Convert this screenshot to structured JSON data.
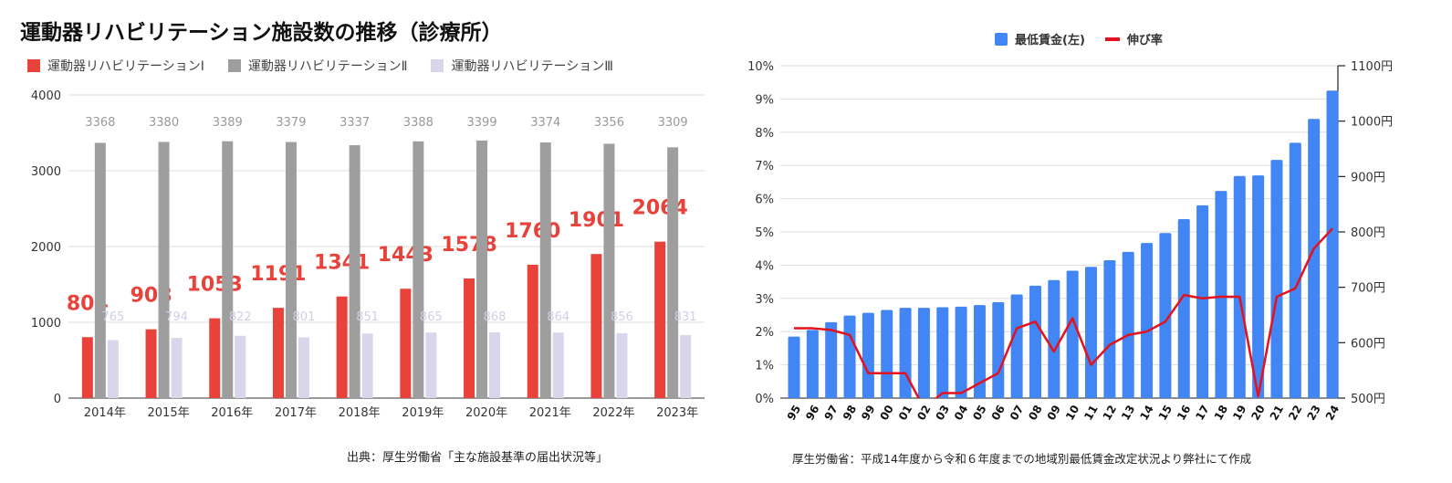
{
  "chart_data": [
    {
      "type": "bar",
      "title": "運動器リハビリテーション施設数の推移（診療所）",
      "categories": [
        "2014年",
        "2015年",
        "2016年",
        "2017年",
        "2018年",
        "2019年",
        "2020年",
        "2021年",
        "2022年",
        "2023年"
      ],
      "series": [
        {
          "name": "運動器リハビリテーションⅠ",
          "color": "#e8423a",
          "values": [
            804,
            908,
            1053,
            1191,
            1341,
            1443,
            1578,
            1760,
            1901,
            2064
          ]
        },
        {
          "name": "運動器リハビリテーションⅡ",
          "color": "#9e9e9e",
          "values": [
            3368,
            3380,
            3389,
            3379,
            3337,
            3388,
            3399,
            3374,
            3356,
            3309
          ]
        },
        {
          "name": "運動器リハビリテーションⅢ",
          "color": "#d9d5ea",
          "values": [
            765,
            794,
            822,
            801,
            851,
            865,
            868,
            864,
            856,
            831
          ]
        }
      ],
      "ylim": [
        0,
        4000
      ],
      "yticks": [
        "0",
        "1000",
        "2000",
        "3000",
        "4000"
      ],
      "grid": true,
      "legend": "top-left",
      "source": "出典：厚生労働省「主な施設基準の届出状況等」"
    },
    {
      "type": "bar+line",
      "categories": [
        "95",
        "96",
        "97",
        "98",
        "99",
        "00",
        "01",
        "02",
        "03",
        "04",
        "05",
        "06",
        "07",
        "08",
        "09",
        "10",
        "11",
        "12",
        "13",
        "14",
        "15",
        "16",
        "17",
        "18",
        "19",
        "20",
        "21",
        "22",
        "23",
        "24"
      ],
      "series": [
        {
          "name": "最低賃金(左)",
          "color": "#4285f4",
          "axis": "right",
          "values": [
            611,
            623,
            637,
            649,
            654,
            659,
            663,
            663,
            664,
            665,
            668,
            673,
            687,
            703,
            713,
            730,
            737,
            749,
            764,
            780,
            798,
            823,
            848,
            874,
            901,
            902,
            930,
            961,
            1004,
            1055
          ]
        },
        {
          "name": "伸び率",
          "color": "#e3121c",
          "axis": "left",
          "values": [
            2.1,
            2.1,
            2.05,
            1.9,
            0.75,
            0.75,
            0.75,
            -0.3,
            0.15,
            0.15,
            0.45,
            0.75,
            2.1,
            2.3,
            1.4,
            2.4,
            1.0,
            1.6,
            1.9,
            2.0,
            2.3,
            3.1,
            3.0,
            3.05,
            3.05,
            0.05,
            3.05,
            3.3,
            4.5,
            5.1
          ]
        }
      ],
      "ylim_left": [
        0,
        10
      ],
      "yticks_left": [
        "0%",
        "1%",
        "2%",
        "3%",
        "4%",
        "5%",
        "6%",
        "7%",
        "8%",
        "9%",
        "10%"
      ],
      "ylim_right": [
        500,
        1100
      ],
      "yticks_right": [
        "500円",
        "600円",
        "700円",
        "800円",
        "900円",
        "1000円",
        "1100円"
      ],
      "grid": true,
      "legend": "top",
      "source": "厚生労働省：平成14年度から令和６年度までの地域別最低賃金改定状況より弊社にて作成"
    }
  ]
}
